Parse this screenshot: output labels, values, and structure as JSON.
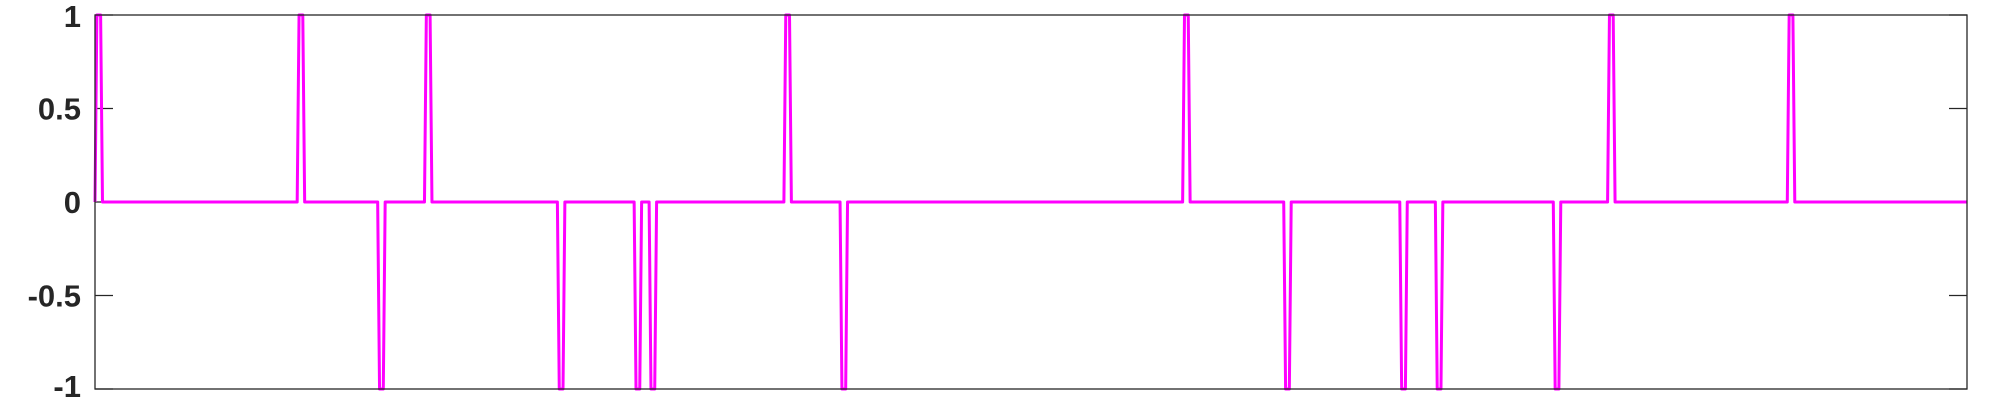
{
  "chart_data": {
    "type": "line",
    "title": "",
    "xlabel": "",
    "ylabel": "",
    "xlim": [
      0,
      1000
    ],
    "ylim": [
      -1,
      1
    ],
    "yticks": [
      1,
      0.5,
      0,
      -0.5,
      -1
    ],
    "ytick_labels": [
      "1",
      "0.5",
      "0",
      "-0.5",
      "-1"
    ],
    "grid": false,
    "legend": "none",
    "colors": {
      "line": "#ff00ff",
      "axes": "#262626"
    },
    "series": [
      {
        "x": [
          0,
          1,
          3,
          4,
          5,
          108,
          109,
          111,
          112,
          151,
          152,
          154,
          155,
          176,
          177,
          179,
          180,
          247,
          248,
          250,
          251,
          288,
          289,
          291,
          292,
          296,
          297,
          299,
          300,
          368,
          369,
          371,
          372,
          398,
          399,
          401,
          402,
          581,
          582,
          584,
          585,
          635,
          636,
          638,
          639,
          697,
          698,
          700,
          701,
          716,
          717,
          719,
          720,
          779,
          780,
          782,
          783,
          808,
          809,
          811,
          812,
          904,
          905,
          907,
          908,
          1000
        ],
        "y": [
          0,
          1,
          1,
          0,
          0,
          0,
          1,
          1,
          0,
          0,
          -1,
          -1,
          0,
          0,
          1,
          1,
          0,
          0,
          -1,
          -1,
          0,
          0,
          -1,
          -1,
          0,
          0,
          -1,
          -1,
          0,
          0,
          1,
          1,
          0,
          0,
          -1,
          -1,
          0,
          0,
          1,
          1,
          0,
          0,
          -1,
          -1,
          0,
          0,
          -1,
          -1,
          0,
          0,
          -1,
          -1,
          0,
          0,
          -1,
          -1,
          0,
          0,
          1,
          1,
          0,
          0,
          1,
          1,
          0,
          0
        ]
      }
    ]
  }
}
